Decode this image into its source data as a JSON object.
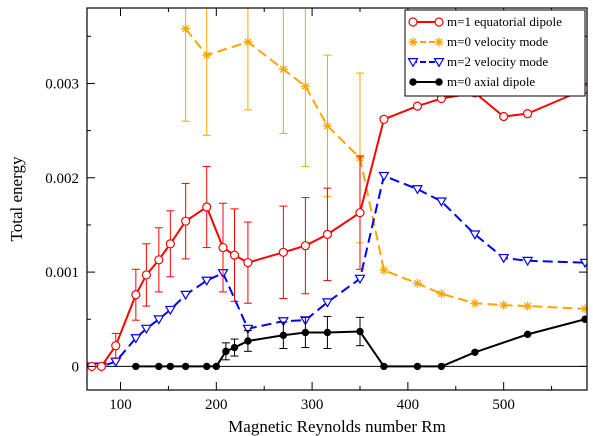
{
  "chart_data": {
    "type": "line",
    "xlabel": "Magnetic Reynolds number Rm",
    "ylabel": "Total energy",
    "xlim": [
      65,
      587
    ],
    "ylim": [
      -0.00025,
      0.0038
    ],
    "xticks": [
      100,
      200,
      300,
      400,
      500
    ],
    "xtick_labels": [
      "100",
      "200",
      "300",
      "400",
      "500"
    ],
    "xminor_step": 50,
    "yticks": [
      0,
      0.001,
      0.002,
      0.003
    ],
    "ytick_labels": [
      "0",
      "0.001",
      "0.002",
      "0.003"
    ],
    "yminor_step": 0.0005,
    "grid": false,
    "zero_line": true,
    "legend_position": "top-right",
    "series": [
      {
        "name": "m=1 equatorial dipole",
        "color": "#ff0000",
        "line": "solid",
        "marker": "circle-open",
        "x": [
          70,
          80,
          95,
          116,
          127,
          140,
          152,
          168,
          190,
          207,
          219,
          233,
          270,
          293,
          316,
          350,
          375,
          410,
          435,
          470,
          500,
          525,
          585
        ],
        "y": [
          0,
          0,
          0.00022,
          0.00076,
          0.00097,
          0.00113,
          0.0013,
          0.00154,
          0.00169,
          0.00126,
          0.00118,
          0.0011,
          0.00121,
          0.00128,
          0.0014,
          0.00163,
          0.00262,
          0.00276,
          0.00284,
          0.0029,
          0.00265,
          0.00268,
          0.00294
        ],
        "err": [
          0,
          0,
          0.00013,
          0.00027,
          0.00033,
          0.00034,
          0.00035,
          0.0004,
          0.00043,
          0.00047,
          0.00049,
          0.00043,
          0.00049,
          0.00051,
          0.00049,
          0.0006,
          0,
          0,
          0,
          0,
          0,
          0,
          0
        ]
      },
      {
        "name": "m=0 velocity mode",
        "color": "#ffa500",
        "line": "dashed",
        "marker": "star",
        "x": [
          168,
          190,
          233,
          270,
          293,
          316,
          350,
          375,
          410,
          435,
          470,
          500,
          525,
          585
        ],
        "y": [
          0.00358,
          0.0033,
          0.00344,
          0.00315,
          0.00297,
          0.00255,
          0.00221,
          0.00102,
          0.00088,
          0.00077,
          0.00067,
          0.00065,
          0.00064,
          0.00061
        ],
        "err": [
          0.00098,
          0.00085,
          0.00072,
          0.00068,
          0.00085,
          0.00075,
          0.0009,
          0,
          0,
          0,
          0,
          0,
          0,
          0
        ]
      },
      {
        "name": "m=2 velocity mode",
        "color": "#0000ff",
        "line": "dashed",
        "marker": "triangle-down-open",
        "x": [
          70,
          80,
          95,
          116,
          127,
          140,
          152,
          168,
          190,
          207,
          233,
          270,
          293,
          316,
          350,
          375,
          410,
          435,
          470,
          500,
          525,
          585
        ],
        "y": [
          0,
          0,
          5e-05,
          0.0003,
          0.0004,
          0.0005,
          0.0006,
          0.00076,
          0.00091,
          0.00099,
          0.0004,
          0.00048,
          0.00049,
          0.00068,
          0.00093,
          0.00202,
          0.00188,
          0.00175,
          0.0014,
          0.00115,
          0.00112,
          0.0011
        ],
        "err": []
      },
      {
        "name": "m=0 axial dipole",
        "color": "#000000",
        "line": "solid",
        "marker": "circle-filled",
        "x": [
          116,
          140,
          152,
          168,
          190,
          200,
          210,
          219,
          233,
          270,
          293,
          316,
          350,
          375,
          410,
          435,
          470,
          525,
          585
        ],
        "y": [
          0,
          0,
          0,
          0,
          0,
          0,
          0.00016,
          0.0002,
          0.00027,
          0.00033,
          0.00036,
          0.00036,
          0.00037,
          0,
          0,
          0,
          0.00015,
          0.00034,
          0.0005
        ],
        "err": [
          0,
          0,
          0,
          0,
          0,
          0,
          9e-05,
          9e-05,
          0.00011,
          0.00014,
          0.00016,
          0.00017,
          0.00015,
          0,
          0,
          0,
          0,
          0,
          0
        ]
      }
    ]
  }
}
